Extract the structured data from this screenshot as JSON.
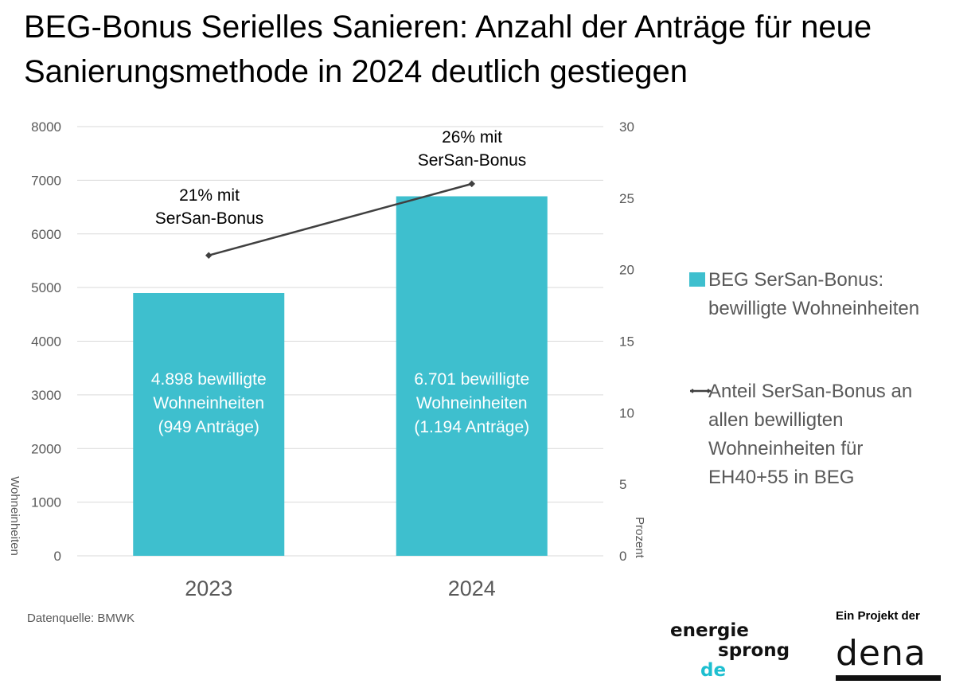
{
  "title": "BEG-Bonus Serielles Sanieren: Anzahl der Anträge für neue Sanierungsmethode in 2024 deutlich gestiegen",
  "chart_data": {
    "type": "bar",
    "categories": [
      "2023",
      "2024"
    ],
    "series": [
      {
        "name": "BEG SerSan-Bonus: bewilligte Wohneinheiten",
        "axis": "left",
        "kind": "bar",
        "color": "#3EBFCE",
        "values": [
          4898,
          6701
        ],
        "labels": [
          [
            "4.898 bewilligte",
            "Wohneinheiten",
            "(949 Anträge)"
          ],
          [
            "6.701 bewilligte",
            "Wohneinheiten",
            "(1.194 Anträge)"
          ]
        ]
      },
      {
        "name": "Anteil SerSan-Bonus an allen bewilligten Wohneinheiten für EH40+55 in BEG",
        "axis": "right",
        "kind": "line",
        "color": "#404040",
        "values": [
          21,
          26
        ],
        "labels": [
          [
            "21% mit",
            "SerSan-Bonus"
          ],
          [
            "26% mit",
            "SerSan-Bonus"
          ]
        ]
      }
    ],
    "ylabel": "Wohneinheiten",
    "ylim": [
      0,
      8000
    ],
    "yticks": [
      0,
      1000,
      2000,
      3000,
      4000,
      5000,
      6000,
      7000,
      8000
    ],
    "y2label": "Prozent",
    "y2lim": [
      0,
      30
    ],
    "y2ticks": [
      0,
      5,
      10,
      15,
      20,
      25,
      30
    ],
    "grid": true,
    "legend": "right"
  },
  "legend": {
    "bar_label": "BEG SerSan-Bonus: bewilligte Wohneinheiten",
    "line_label": "Anteil SerSan-Bonus an allen bewilligten Wohneinheiten für EH40+55 in BEG"
  },
  "source": "Datenquelle: BMWK",
  "logos": {
    "energiesprong": [
      "energie",
      "sprong",
      "de"
    ],
    "projekt_text": "Ein Projekt der",
    "dena": "dena"
  },
  "colors": {
    "bar": "#3EBFCE",
    "line": "#404040",
    "axis_text": "#595959",
    "grid": "#D9D9D9"
  }
}
